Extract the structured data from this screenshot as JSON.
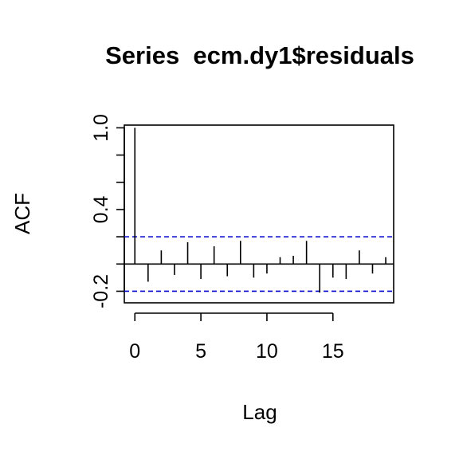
{
  "chart_data": {
    "type": "bar",
    "title": "Series  ecm.dy1$residuals",
    "xlabel": "Lag",
    "ylabel": "ACF",
    "xlim": [
      -0.8,
      19.6
    ],
    "ylim": [
      -0.285,
      1.02
    ],
    "x_ticks": [
      0,
      5,
      10,
      15
    ],
    "x_tick_labels": [
      "0",
      "5",
      "10",
      "15"
    ],
    "y_ticks": [
      -0.2,
      0.4,
      1.0
    ],
    "y_tick_labels": [
      "-0.2",
      "0.4",
      "1.0"
    ],
    "y_minor_ticks": [
      0.0,
      0.2,
      0.6,
      0.8
    ],
    "confidence_bounds": [
      0.2,
      -0.2
    ],
    "zero_line": 0,
    "grid": false,
    "lags": [
      0,
      1,
      2,
      3,
      4,
      5,
      6,
      7,
      8,
      9,
      10,
      11,
      12,
      13,
      14,
      15,
      16,
      17,
      18,
      19
    ],
    "values": [
      1.0,
      -0.13,
      0.1,
      -0.08,
      0.16,
      -0.11,
      0.13,
      -0.09,
      0.17,
      -0.1,
      -0.07,
      0.05,
      0.06,
      0.17,
      -0.21,
      -0.1,
      -0.11,
      0.1,
      -0.07,
      0.05
    ],
    "colors": {
      "bars": "#000000",
      "confidence": "#0000cd"
    }
  }
}
